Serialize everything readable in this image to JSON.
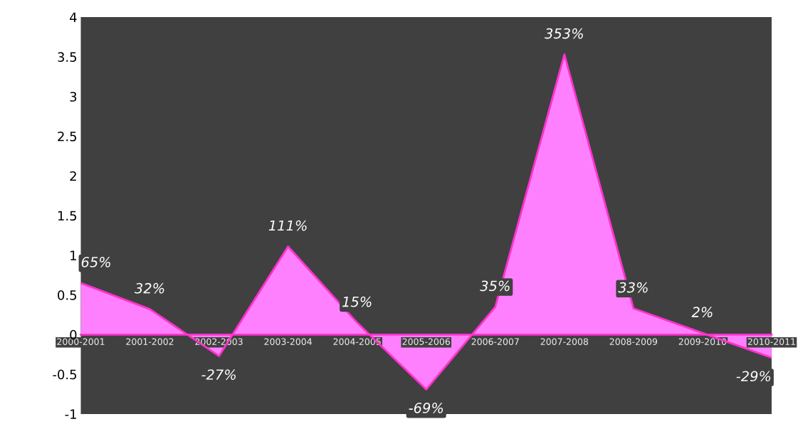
{
  "chart_data": {
    "type": "area",
    "categories": [
      "2000-2001",
      "2001-2002",
      "2002-2003",
      "2003-2004",
      "2004-2005",
      "2005-2006",
      "2006-2007",
      "2007-2008",
      "2008-2009",
      "2009-2010",
      "2010-2011"
    ],
    "series": [
      {
        "color": "#ff80ff",
        "values": [
          0.65,
          0.32,
          -0.27,
          1.11,
          0.15,
          -0.69,
          0.35,
          3.53,
          0.33,
          0.02,
          -0.29
        ],
        "value_labels": [
          "65%",
          "32%",
          "-27%",
          "111%",
          "15%",
          "-69%",
          "35%",
          "353%",
          "33%",
          "2%",
          "-29%"
        ]
      }
    ],
    "ylim": [
      -1,
      4
    ],
    "yticks": [
      -1,
      -0.5,
      0,
      0.5,
      1,
      1.5,
      2,
      2.5,
      3,
      3.5,
      4
    ],
    "grid": false,
    "legend": false
  }
}
